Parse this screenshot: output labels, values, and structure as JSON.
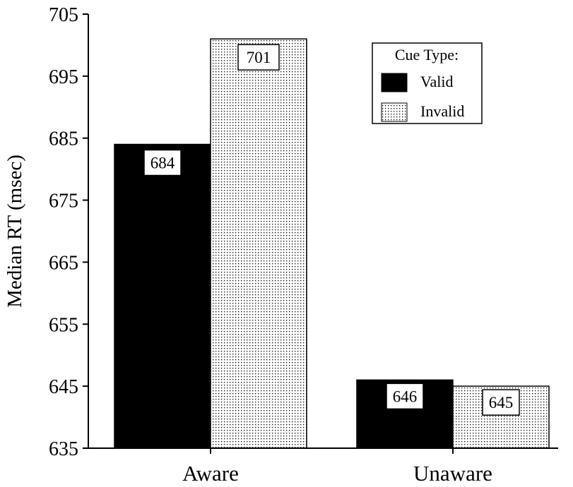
{
  "chart_data": {
    "type": "bar",
    "title": "",
    "xlabel": "",
    "ylabel": "Median RT (msec)",
    "ylim": [
      635,
      705
    ],
    "yticks": [
      "635",
      "645",
      "655",
      "665",
      "675",
      "685",
      "695",
      "705"
    ],
    "categories": [
      "Aware",
      "Unaware"
    ],
    "series": [
      {
        "name": "Valid",
        "values": [
          684,
          646
        ],
        "labels": [
          "684",
          "646"
        ],
        "fill": "solid-black"
      },
      {
        "name": "Invalid",
        "values": [
          701,
          645
        ],
        "labels": [
          "701",
          "645"
        ],
        "fill": "dotted"
      }
    ],
    "legend": {
      "title": "Cue Type:",
      "position": "top-right"
    },
    "grid": false,
    "colors": {
      "valid": "#000000",
      "invalid_dots": "#000000",
      "background": "#ffffff"
    }
  }
}
